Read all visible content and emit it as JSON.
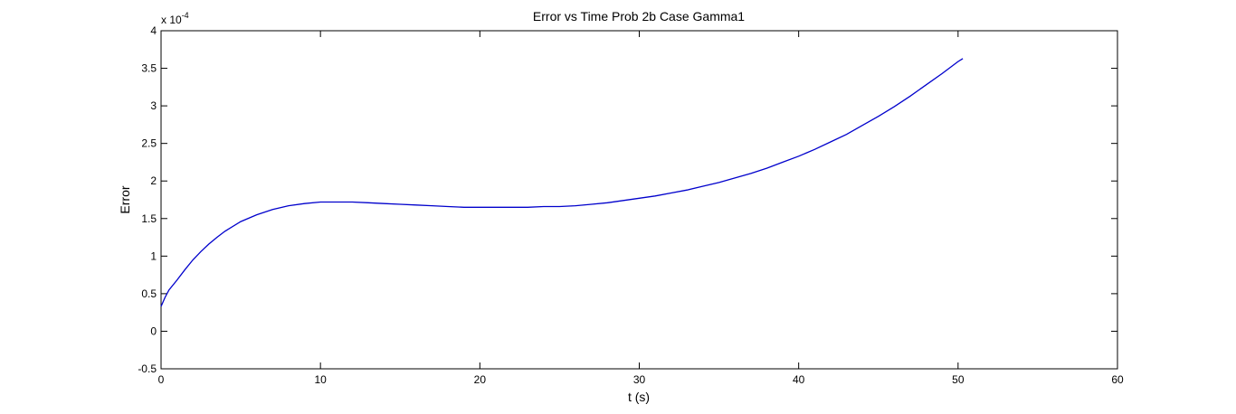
{
  "chart_data": {
    "type": "line",
    "title": "Error vs Time Prob 2b Case Gamma1",
    "xlabel": "t (s)",
    "ylabel": "Error",
    "y_scale_label": "x 10",
    "y_scale_exponent": "-4",
    "xlim": [
      0,
      60
    ],
    "ylim": [
      -0.5,
      4
    ],
    "x_ticks": [
      "0",
      "10",
      "20",
      "30",
      "40",
      "50",
      "60"
    ],
    "y_ticks": [
      "-0.5",
      "0",
      "0.5",
      "1",
      "1.5",
      "2",
      "2.5",
      "3",
      "3.5",
      "4"
    ],
    "grid": false,
    "series": [
      {
        "color": "#0000cc",
        "x": [
          0,
          0.25,
          0.5,
          1,
          1.5,
          2,
          2.5,
          3,
          3.5,
          4,
          5,
          6,
          7,
          8,
          9,
          10,
          11,
          12,
          13,
          14,
          15,
          16,
          17,
          18,
          19,
          20,
          21,
          22,
          23,
          24,
          25,
          26,
          27,
          28,
          29,
          30,
          31,
          32,
          33,
          34,
          35,
          36,
          37,
          38,
          39,
          40,
          41,
          42,
          43,
          44,
          45,
          46,
          47,
          48,
          49,
          50,
          50.3
        ],
        "y": [
          0.33,
          0.45,
          0.55,
          0.68,
          0.82,
          0.95,
          1.06,
          1.16,
          1.25,
          1.33,
          1.46,
          1.55,
          1.62,
          1.67,
          1.7,
          1.72,
          1.72,
          1.72,
          1.71,
          1.7,
          1.69,
          1.68,
          1.67,
          1.66,
          1.65,
          1.65,
          1.65,
          1.65,
          1.65,
          1.66,
          1.66,
          1.67,
          1.69,
          1.71,
          1.74,
          1.77,
          1.8,
          1.84,
          1.88,
          1.93,
          1.98,
          2.04,
          2.1,
          2.17,
          2.25,
          2.33,
          2.42,
          2.52,
          2.62,
          2.74,
          2.86,
          2.99,
          3.13,
          3.28,
          3.43,
          3.59,
          3.63
        ]
      }
    ]
  }
}
